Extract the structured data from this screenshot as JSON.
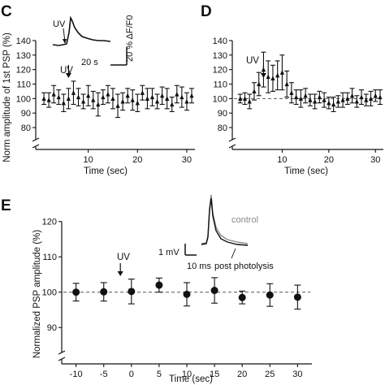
{
  "panels": {
    "c": "C",
    "d": "D",
    "e": "E"
  },
  "top_ylabel": "Norm amplitude of 1st PSP (%)",
  "colors": {
    "ink": "#111111",
    "control_trace": "#8a8a8a",
    "dashed": "#555555"
  },
  "chart_data": [
    {
      "type": "scatter",
      "panel": "C",
      "xlabel": "Time (sec)",
      "ylabel": "Norm amplitude of 1st PSP (%)",
      "xticks": [
        10,
        20,
        30
      ],
      "yticks": [
        80,
        90,
        100,
        110,
        120,
        130,
        140
      ],
      "xlim": [
        0,
        31
      ],
      "ylim": [
        75,
        145
      ],
      "axis_break": true,
      "annotation": "UV",
      "uv_time": 6,
      "inset": {
        "uv_label": "UV",
        "time_scale_label": "20 s",
        "amp_scale_label": "20 % ΔF/F0"
      },
      "x": [
        1,
        2,
        3,
        4,
        5,
        6,
        7,
        8,
        9,
        10,
        11,
        12,
        13,
        14,
        15,
        16,
        17,
        18,
        19,
        20,
        21,
        22,
        23,
        24,
        25,
        26,
        27,
        28,
        29,
        30,
        31
      ],
      "y": [
        100,
        99,
        103,
        101,
        97,
        100,
        104,
        101,
        98,
        102,
        99,
        96,
        101,
        103,
        100,
        95,
        98,
        102,
        99,
        97,
        104,
        100,
        101,
        98,
        102,
        100,
        96,
        103,
        101,
        98,
        102
      ],
      "err": [
        4,
        5,
        6,
        5,
        6,
        7,
        8,
        6,
        5,
        7,
        6,
        8,
        5,
        6,
        7,
        8,
        6,
        5,
        7,
        6,
        5,
        7,
        6,
        5,
        6,
        7,
        5,
        6,
        7,
        6,
        5
      ]
    },
    {
      "type": "scatter",
      "panel": "D",
      "xlabel": "Time (sec)",
      "xticks": [
        10,
        20,
        30
      ],
      "yticks": [
        80,
        90,
        100,
        110,
        120,
        130,
        140
      ],
      "xlim": [
        0,
        31
      ],
      "ylim": [
        75,
        145
      ],
      "axis_break": true,
      "baseline": 100,
      "annotation": "UV",
      "uv_time": 6,
      "x": [
        1,
        2,
        3,
        4,
        5,
        6,
        7,
        8,
        9,
        10,
        11,
        12,
        13,
        14,
        15,
        16,
        17,
        18,
        19,
        20,
        21,
        22,
        23,
        24,
        25,
        26,
        27,
        28,
        29,
        30,
        31
      ],
      "y": [
        100,
        100,
        98,
        105,
        110,
        120,
        115,
        114,
        116,
        118,
        110,
        104,
        101,
        100,
        102,
        99,
        98,
        101,
        99,
        97,
        96,
        98,
        99,
        100,
        102,
        98,
        101,
        99,
        100,
        102,
        101
      ],
      "err": [
        3,
        4,
        5,
        6,
        8,
        12,
        11,
        9,
        10,
        12,
        9,
        7,
        5,
        6,
        5,
        4,
        5,
        4,
        5,
        4,
        5,
        4,
        5,
        4,
        5,
        4,
        5,
        4,
        5,
        4,
        5
      ]
    },
    {
      "type": "scatter",
      "panel": "E",
      "xlabel": "Time (sec)",
      "ylabel": "Normalized PSP amplitude (%)",
      "xticks": [
        -10,
        -5,
        0,
        5,
        10,
        15,
        20,
        25,
        30
      ],
      "yticks": [
        90,
        100,
        110,
        120
      ],
      "xlim": [
        -12,
        32
      ],
      "ylim": [
        85,
        122
      ],
      "axis_break": true,
      "baseline": 100,
      "annotation": "UV",
      "uv_time": -2,
      "inset": {
        "amp_scale_label": "1 mV",
        "time_scale_label": "10 ms",
        "control_label": "control",
        "post_label": "post photolysis"
      },
      "x": [
        -10,
        -5,
        0,
        5,
        10,
        15,
        20,
        25,
        30
      ],
      "y": [
        100.0,
        100.1,
        100.2,
        102.0,
        99.4,
        100.5,
        98.5,
        99.2,
        98.6
      ],
      "err": [
        2.5,
        2.6,
        3.5,
        2.0,
        3.3,
        3.6,
        1.8,
        3.2,
        3.4
      ]
    }
  ]
}
